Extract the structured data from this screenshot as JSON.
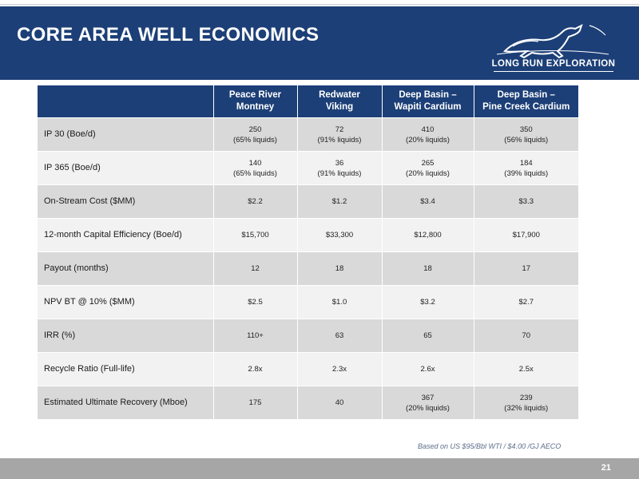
{
  "slide": {
    "title": "CORE AREA WELL ECONOMICS",
    "logo_text": "LONG RUN EXPLORATION",
    "footnote": "Based on US $95/Bbl WTI / $4.00 /GJ AECO",
    "page_number": "21"
  },
  "colors": {
    "header_bg": "#1c3f77",
    "row_dark": "#d9d9d9",
    "row_light": "#f2f2f2",
    "footer_bg": "#a6a6a6"
  },
  "table": {
    "headers": [
      [
        "Peace River",
        "Montney"
      ],
      [
        "Redwater",
        "Viking"
      ],
      [
        "Deep Basin –",
        "Wapiti Cardium"
      ],
      [
        "Deep Basin –",
        "Pine Creek Cardium"
      ]
    ],
    "rows": [
      {
        "label": "IP 30 (Boe/d)",
        "cells": [
          {
            "value": "250",
            "note": "(65% liquids)"
          },
          {
            "value": "72",
            "note": "(91% liquids)"
          },
          {
            "value": "410",
            "note": "(20% liquids)"
          },
          {
            "value": "350",
            "note": "(56% liquids)"
          }
        ]
      },
      {
        "label": "IP 365 (Boe/d)",
        "cells": [
          {
            "value": "140",
            "note": "(65% liquids)"
          },
          {
            "value": "36",
            "note": "(91% liquids)"
          },
          {
            "value": "265",
            "note": "(20% liquids)"
          },
          {
            "value": "184",
            "note": "(39% liquids)"
          }
        ]
      },
      {
        "label": "On-Stream Cost ($MM)",
        "cells": [
          {
            "value": "$2.2",
            "note": ""
          },
          {
            "value": "$1.2",
            "note": ""
          },
          {
            "value": "$3.4",
            "note": ""
          },
          {
            "value": "$3.3",
            "note": ""
          }
        ]
      },
      {
        "label": "12-month Capital Efficiency (Boe/d)",
        "cells": [
          {
            "value": "$15,700",
            "note": ""
          },
          {
            "value": "$33,300",
            "note": ""
          },
          {
            "value": "$12,800",
            "note": ""
          },
          {
            "value": "$17,900",
            "note": ""
          }
        ]
      },
      {
        "label": "Payout (months)",
        "cells": [
          {
            "value": "12",
            "note": ""
          },
          {
            "value": "18",
            "note": ""
          },
          {
            "value": "18",
            "note": ""
          },
          {
            "value": "17",
            "note": ""
          }
        ]
      },
      {
        "label": "NPV BT @ 10% ($MM)",
        "cells": [
          {
            "value": "$2.5",
            "note": ""
          },
          {
            "value": "$1.0",
            "note": ""
          },
          {
            "value": "$3.2",
            "note": ""
          },
          {
            "value": "$2.7",
            "note": ""
          }
        ]
      },
      {
        "label": "IRR (%)",
        "cells": [
          {
            "value": "110+",
            "note": ""
          },
          {
            "value": "63",
            "note": ""
          },
          {
            "value": "65",
            "note": ""
          },
          {
            "value": "70",
            "note": ""
          }
        ]
      },
      {
        "label": "Recycle Ratio (Full-life)",
        "cells": [
          {
            "value": "2.8x",
            "note": ""
          },
          {
            "value": "2.3x",
            "note": ""
          },
          {
            "value": "2.6x",
            "note": ""
          },
          {
            "value": "2.5x",
            "note": ""
          }
        ]
      },
      {
        "label": "Estimated Ultimate Recovery (Mboe)",
        "cells": [
          {
            "value": "175",
            "note": ""
          },
          {
            "value": "40",
            "note": ""
          },
          {
            "value": "367",
            "note": "(20% liquids)"
          },
          {
            "value": "239",
            "note": "(32% liquids)"
          }
        ]
      }
    ]
  }
}
